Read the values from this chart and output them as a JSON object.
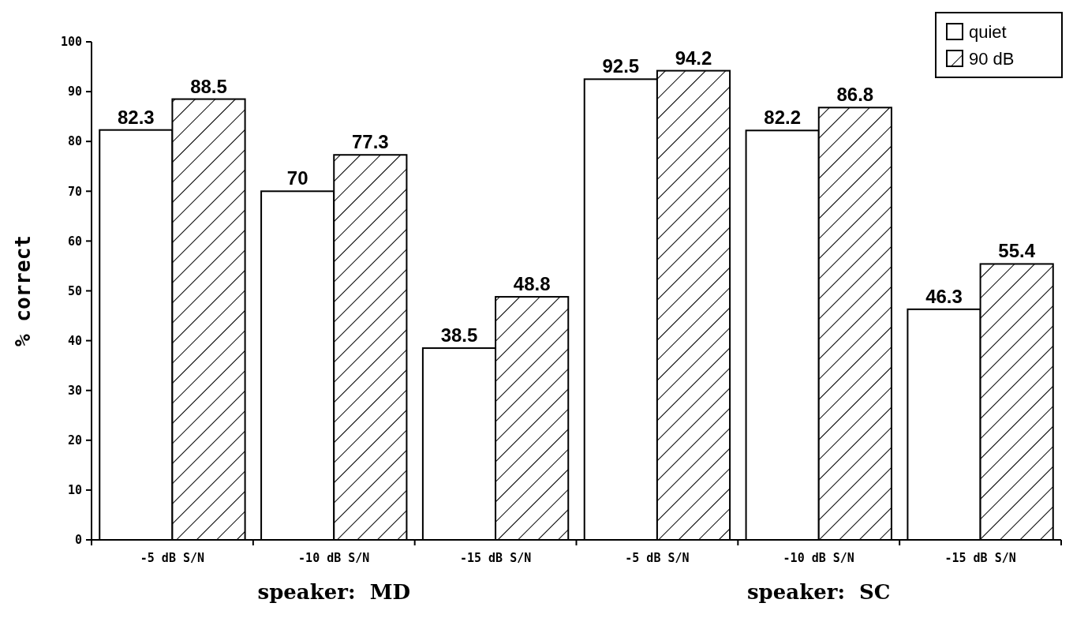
{
  "chart_data": {
    "type": "bar",
    "categories": [
      "-5 dB S/N",
      "-10 dB S/N",
      "-15 dB S/N",
      "-5 dB S/N",
      "-10 dB S/N",
      "-15 dB S/N"
    ],
    "series": [
      {
        "name": "quiet",
        "color": "#ffffff",
        "values": [
          82.3,
          70,
          38.5,
          92.5,
          82.2,
          46.3
        ]
      },
      {
        "name": "90 dB",
        "color": "#000000",
        "values": [
          88.5,
          77.3,
          48.8,
          94.2,
          86.8,
          55.4
        ]
      }
    ],
    "ylabel": "% correct",
    "annotations": [
      "speaker:  MD",
      "speaker:  SC"
    ],
    "ylim": [
      0,
      100
    ],
    "yticks": [
      0,
      10,
      20,
      30,
      40,
      50,
      60,
      70,
      80,
      90,
      100
    ],
    "data_labels": true,
    "grid": false,
    "legend": "top right"
  }
}
